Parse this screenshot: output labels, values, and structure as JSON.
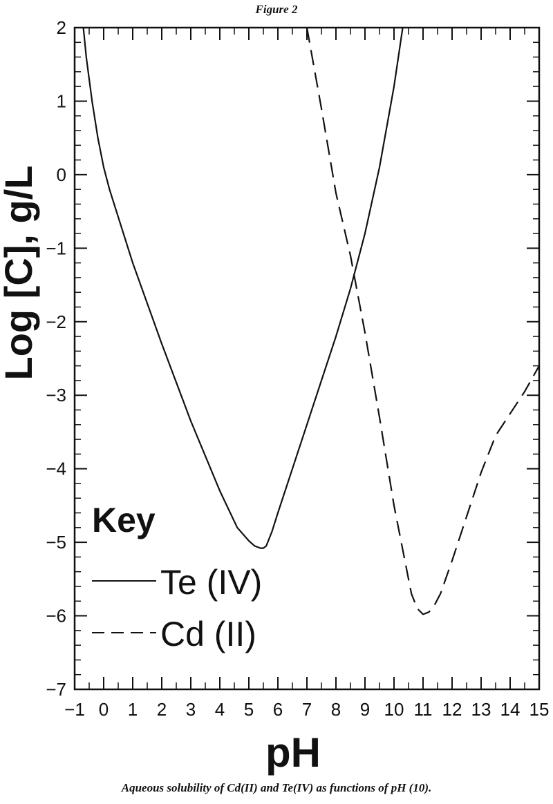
{
  "figure_label": "Figure 2",
  "caption": "Aqueous solubility of Cd(II) and Te(IV) as functions of pH (10).",
  "chart_data": {
    "type": "line",
    "xlabel": "pH",
    "ylabel": "Log [C], g/L",
    "xlim": [
      -1,
      15
    ],
    "ylim": [
      -7,
      2
    ],
    "xticks": [
      -1,
      0,
      1,
      2,
      3,
      4,
      5,
      6,
      7,
      8,
      9,
      10,
      11,
      12,
      13,
      14,
      15
    ],
    "yticks": [
      -7,
      -6,
      -5,
      -4,
      -3,
      -2,
      -1,
      0,
      1,
      2
    ],
    "grid": false,
    "legend": {
      "title": "Key",
      "placement": "bottom-left"
    },
    "series": [
      {
        "name": "Te (IV)",
        "style": "solid",
        "color": "#111111",
        "x": [
          -0.7,
          -0.6,
          -0.4,
          -0.2,
          0.0,
          0.2,
          1.0,
          2.0,
          3.0,
          4.0,
          4.6,
          5.0,
          5.2,
          5.4,
          5.5,
          5.6,
          5.8,
          6.0,
          6.5,
          7.0,
          7.5,
          8.0,
          8.5,
          9.0,
          9.5,
          10.0,
          10.3
        ],
        "y": [
          2.0,
          1.6,
          1.0,
          0.5,
          0.1,
          -0.2,
          -1.2,
          -2.3,
          -3.35,
          -4.3,
          -4.8,
          -4.98,
          -5.05,
          -5.08,
          -5.08,
          -5.05,
          -4.85,
          -4.6,
          -4.0,
          -3.4,
          -2.8,
          -2.2,
          -1.55,
          -0.8,
          0.1,
          1.2,
          2.0
        ]
      },
      {
        "name": "Cd (II)",
        "style": "dashed",
        "color": "#111111",
        "x": [
          7.0,
          7.5,
          8.0,
          8.5,
          9.0,
          9.5,
          10.0,
          10.3,
          10.6,
          10.8,
          11.0,
          11.2,
          11.4,
          11.6,
          12.0,
          12.5,
          13.0,
          13.5,
          14.0,
          14.5,
          15.0
        ],
        "y": [
          2.0,
          0.9,
          -0.25,
          -1.1,
          -2.15,
          -3.3,
          -4.5,
          -5.1,
          -5.7,
          -5.9,
          -5.98,
          -5.95,
          -5.85,
          -5.7,
          -5.25,
          -4.65,
          -4.05,
          -3.55,
          -3.25,
          -2.95,
          -2.6
        ]
      }
    ]
  }
}
